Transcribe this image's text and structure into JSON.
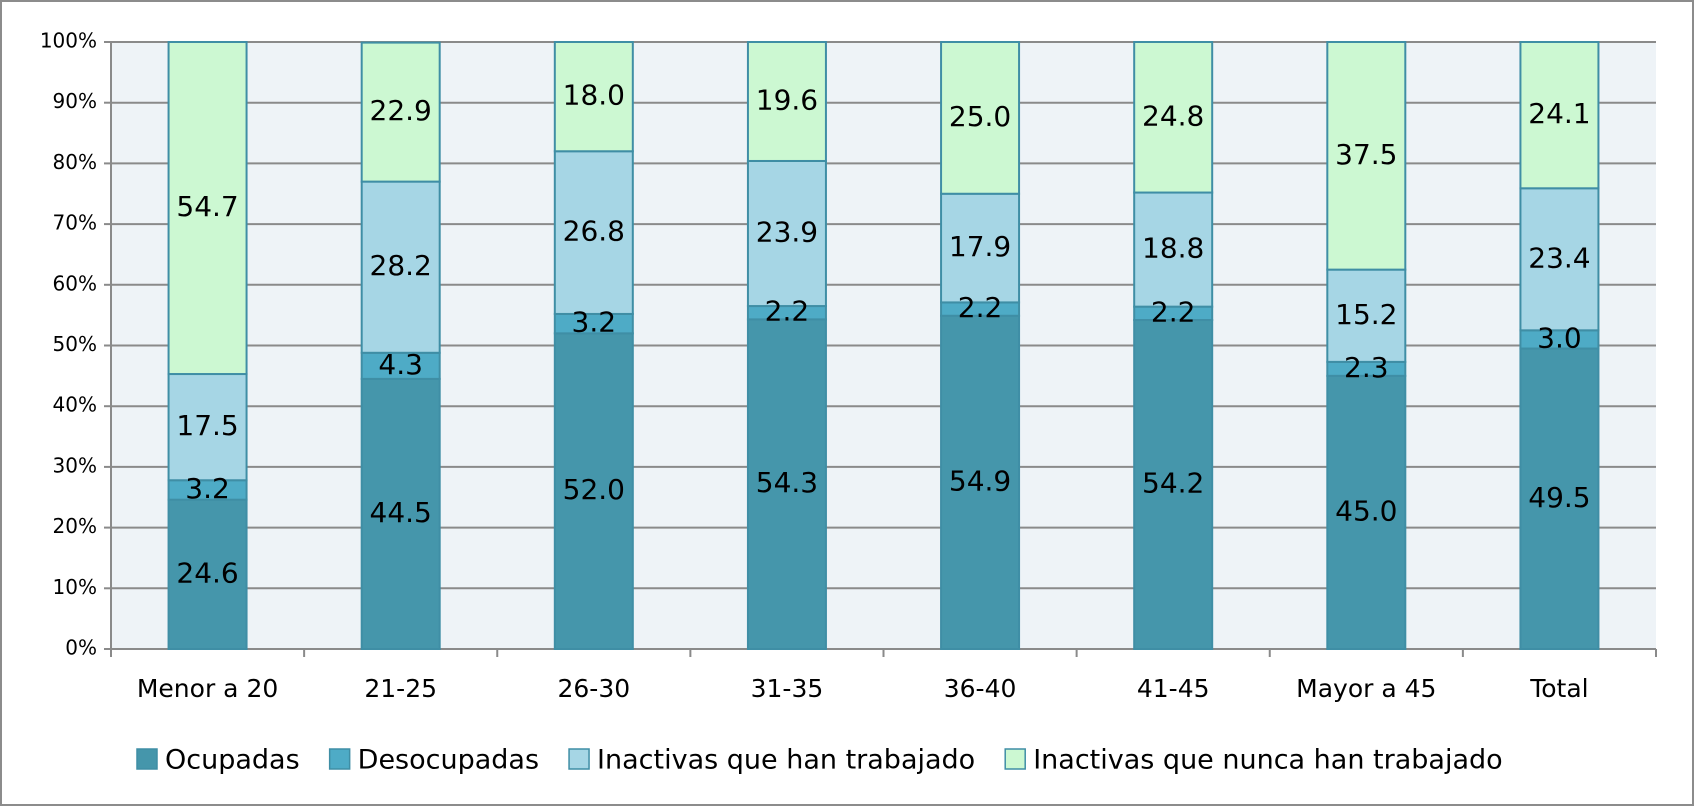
{
  "chart_data": {
    "type": "stacked_bar",
    "categories": [
      "Menor a 20",
      "21-25",
      "26-30",
      "31-35",
      "36-40",
      "41-45",
      "Mayor a 45",
      "Total"
    ],
    "series": [
      {
        "name": "Ocupadas",
        "color": "#4596ab",
        "values": [
          24.6,
          44.5,
          52.0,
          54.3,
          54.9,
          54.2,
          45.0,
          49.5
        ],
        "value_labels": [
          "24.6",
          "44.5",
          "52.0",
          "54.3",
          "54.9",
          "54.2",
          "45.0",
          "49.5"
        ]
      },
      {
        "name": "Desocupadas",
        "color": "#4eabc6",
        "values": [
          3.2,
          4.3,
          3.2,
          2.2,
          2.2,
          2.2,
          2.3,
          3.0
        ],
        "value_labels": [
          "3.2",
          "4.3",
          "3.2",
          "2.2",
          "2.2",
          "2.2",
          "2.3",
          "3.0"
        ]
      },
      {
        "name": "Inactivas que han trabajado",
        "color": "#a6d6e5",
        "values": [
          17.5,
          28.2,
          26.8,
          23.9,
          17.9,
          18.8,
          15.2,
          23.4
        ],
        "value_labels": [
          "17.5",
          "28.2",
          "26.8",
          "23.9",
          "17.9",
          "18.8",
          "15.2",
          "23.4"
        ]
      },
      {
        "name": "Inactivas que nunca han trabajado",
        "color": "#ccf8d2",
        "values": [
          54.7,
          22.9,
          18.0,
          19.6,
          25.0,
          24.8,
          37.5,
          24.1
        ],
        "value_labels": [
          "54.7",
          "22.9",
          "18.0",
          "19.6",
          "25.0",
          "24.8",
          "37.5",
          "24.1"
        ]
      }
    ],
    "ylim": [
      0,
      100
    ],
    "yticks": [
      {
        "value": 0,
        "label": "0%"
      },
      {
        "value": 10,
        "label": "10%"
      },
      {
        "value": 20,
        "label": "20%"
      },
      {
        "value": 30,
        "label": "30%"
      },
      {
        "value": 40,
        "label": "40%"
      },
      {
        "value": 50,
        "label": "50%"
      },
      {
        "value": 60,
        "label": "60%"
      },
      {
        "value": 70,
        "label": "70%"
      },
      {
        "value": 80,
        "label": "80%"
      },
      {
        "value": 90,
        "label": "90%"
      },
      {
        "value": 100,
        "label": "100%"
      }
    ],
    "grid": true,
    "legend": "bottom"
  }
}
